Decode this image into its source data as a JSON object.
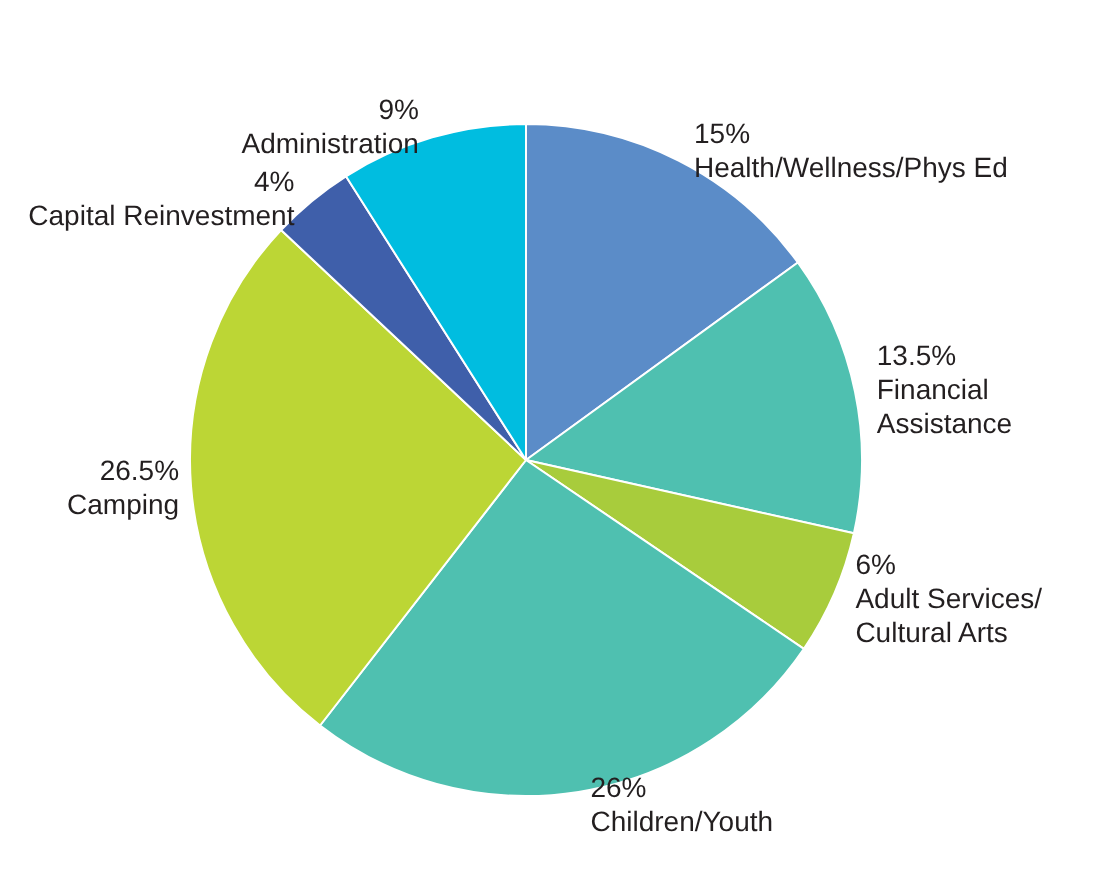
{
  "chart_data": {
    "type": "pie",
    "categories": [
      "Health/Wellness/Phys Ed",
      "Financial Assistance",
      "Adult Services/Cultural Arts",
      "Children/Youth",
      "Camping",
      "Capital Reinvestment",
      "Administration"
    ],
    "values": [
      15,
      13.5,
      6,
      26,
      26.5,
      4,
      9
    ],
    "colors": [
      "#5b8cc8",
      "#4fc0b0",
      "#a8cc3c",
      "#4fc0b0",
      "#bcd635",
      "#3f5faa",
      "#00bde0"
    ],
    "value_labels": [
      "15%",
      "13.5%",
      "6%",
      "26%",
      "26.5%",
      "4%",
      "9%"
    ],
    "legend": false
  }
}
